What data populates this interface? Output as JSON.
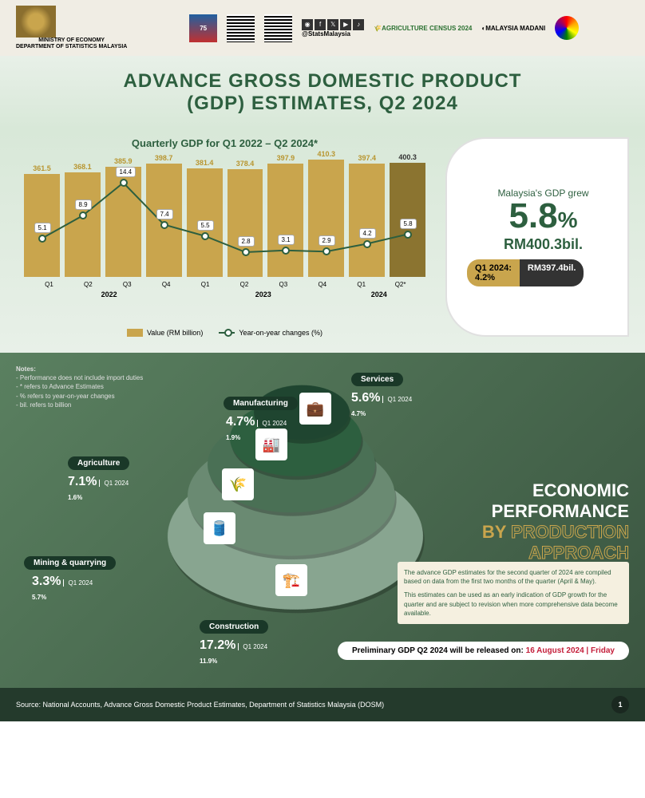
{
  "header": {
    "ministry_line1": "MINISTRY OF ECONOMY",
    "ministry_line2": "DEPARTMENT OF STATISTICS MALAYSIA",
    "stats_handle": "@StatsMalaysia",
    "agri_census": "AGRICULTURE CENSUS 2024",
    "madani": "MALAYSIA MADANI"
  },
  "title": {
    "line1": "ADVANCE GROSS DOMESTIC PRODUCT",
    "line2": "(GDP) ESTIMATES, Q2 2024"
  },
  "chart": {
    "subtitle": "Quarterly GDP for Q1 2022 – Q2 2024*",
    "type": "bar_line_combo",
    "quarters": [
      "Q1",
      "Q2",
      "Q3",
      "Q4",
      "Q1",
      "Q2",
      "Q3",
      "Q4",
      "Q1",
      "Q2*"
    ],
    "years": [
      "2022",
      "2023",
      "2024"
    ],
    "year_spans": [
      4,
      4,
      2
    ],
    "values": [
      361.5,
      368.1,
      385.9,
      398.7,
      381.4,
      378.4,
      397.9,
      410.3,
      397.4,
      400.3
    ],
    "yoy": [
      5.1,
      8.9,
      14.4,
      7.4,
      5.5,
      2.8,
      3.1,
      2.9,
      4.2,
      5.8
    ],
    "value_max": 420,
    "yoy_max": 16,
    "bar_color": "#c9a54d",
    "bar_highlight_color": "#8b7430",
    "line_color": "#2d5f3f",
    "legend_value": "Value (RM billion)",
    "legend_yoy": "Year-on-year changes (%)"
  },
  "highlight": {
    "text": "Malaysia's GDP grew",
    "pct": "5.8",
    "pct_suffix": "%",
    "amount": "RM400.3bil.",
    "prev_q_label": "Q1 2024:",
    "prev_q_pct": "4.2%",
    "prev_amount": "RM397.4bil."
  },
  "notes": {
    "title": "Notes:",
    "items": [
      "- Performance does not include import duties",
      "- * refers to Advance Estimates",
      "- % refers to year-on-year changes",
      "- bil. refers to billion"
    ]
  },
  "sectors": {
    "services": {
      "name": "Services",
      "pct": "5.6%",
      "prev_label": "Q1 2024",
      "prev": "4.7%",
      "color": "#1f4530"
    },
    "manufacturing": {
      "name": "Manufacturing",
      "pct": "4.7%",
      "prev_label": "Q1 2024",
      "prev": "1.9%",
      "color": "#2d5f3f"
    },
    "agriculture": {
      "name": "Agriculture",
      "pct": "7.1%",
      "prev_label": "Q1 2024",
      "prev": "1.6%",
      "color": "#4a7055"
    },
    "mining": {
      "name": "Mining & quarrying",
      "pct": "3.3%",
      "prev_label": "Q1 2024",
      "prev": "5.7%",
      "color": "#6a8a72"
    },
    "construction": {
      "name": "Construction",
      "pct": "17.2%",
      "prev_label": "Q1 2024",
      "prev": "11.9%",
      "color": "#88a590"
    }
  },
  "econ_title": {
    "line1": "ECONOMIC",
    "line2": "PERFORMANCE",
    "line3_by": "BY",
    "line3_rest": "PRODUCTION",
    "line4": "APPROACH",
    "dot_colors": [
      "#c9c9a0",
      "#b8b87a",
      "#a0a055",
      "#2d5f3f",
      "#1f4530",
      "#b0b0b0",
      "#c0c0c0",
      "#d0d0d0"
    ]
  },
  "disclaimer": {
    "p1": "The advance GDP estimates for the second quarter of 2024 are compiled based on data from the first two months of the quarter (April & May).",
    "p2": "This estimates can be used as an early indication of GDP growth for the quarter and are subject to revision when more comprehensive data become available."
  },
  "release": {
    "label": "Preliminary GDP Q2 2024 will be released on:",
    "date": "16 August 2024 | Friday"
  },
  "footer": {
    "source": "Source: National Accounts, Advance Gross Domestic Product Estimates, Department of Statistics Malaysia (DOSM)",
    "page": "1"
  }
}
